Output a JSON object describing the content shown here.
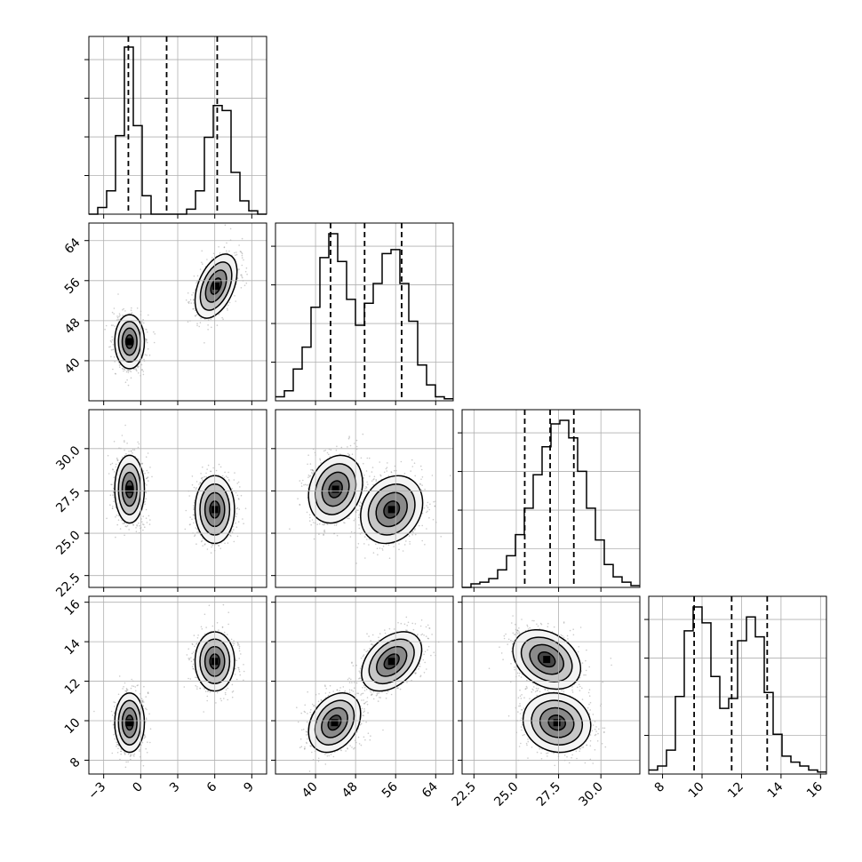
{
  "chart_data": {
    "type": "corner",
    "title": "",
    "grid": true,
    "parameters": [
      {
        "name": "",
        "range": [
          -4.2,
          10.2
        ],
        "ticks": [
          -3,
          0,
          3,
          6,
          9
        ],
        "tick_labels": [
          "−3",
          "0",
          "3",
          "6",
          "9"
        ],
        "quantiles": [
          -1.0,
          2.1,
          6.2
        ],
        "histogram": {
          "bin_start": -4.2,
          "bin_width": 0.72,
          "counts": [
            0.0,
            0.04,
            0.14,
            0.47,
            1.0,
            0.53,
            0.11,
            0.0,
            0.0,
            0.0,
            0.0,
            0.03,
            0.14,
            0.46,
            0.65,
            0.62,
            0.25,
            0.08,
            0.02,
            0.0
          ]
        }
      },
      {
        "name": "",
        "range": [
          32,
          67.5
        ],
        "ticks": [
          40,
          48,
          56,
          64
        ],
        "tick_labels": [
          "40",
          "48",
          "56",
          "64"
        ],
        "quantiles": [
          43.0,
          49.8,
          57.2
        ],
        "histogram": {
          "bin_start": 32,
          "bin_width": 1.775,
          "counts": [
            0.02,
            0.05,
            0.16,
            0.27,
            0.47,
            0.72,
            0.84,
            0.7,
            0.51,
            0.38,
            0.49,
            0.59,
            0.74,
            0.76,
            0.59,
            0.4,
            0.18,
            0.08,
            0.02,
            0.01
          ]
        }
      },
      {
        "name": "",
        "range": [
          21.8,
          32.3
        ],
        "ticks": [
          22.5,
          25.0,
          27.5,
          30.0
        ],
        "tick_labels": [
          "22.5",
          "25.0",
          "27.5",
          "30.0"
        ],
        "quantiles": [
          25.5,
          27.0,
          28.4
        ],
        "histogram": {
          "bin_start": 21.8,
          "bin_width": 0.525,
          "counts": [
            0.0,
            0.02,
            0.03,
            0.05,
            0.1,
            0.18,
            0.3,
            0.45,
            0.64,
            0.8,
            0.93,
            0.95,
            0.85,
            0.66,
            0.45,
            0.27,
            0.13,
            0.06,
            0.03,
            0.01
          ]
        }
      },
      {
        "name": "",
        "range": [
          7.3,
          16.3
        ],
        "ticks": [
          8,
          10,
          12,
          14,
          16
        ],
        "tick_labels": [
          "8",
          "10",
          "12",
          "14",
          "16"
        ],
        "quantiles": [
          9.6,
          11.5,
          13.3
        ],
        "histogram": {
          "bin_start": 7.3,
          "bin_width": 0.45,
          "counts": [
            0.02,
            0.04,
            0.12,
            0.39,
            0.72,
            0.84,
            0.76,
            0.49,
            0.33,
            0.38,
            0.67,
            0.79,
            0.69,
            0.41,
            0.2,
            0.09,
            0.06,
            0.04,
            0.02,
            0.01
          ]
        }
      }
    ],
    "pairs": [
      {
        "row": 1,
        "col": 0,
        "modes": [
          {
            "mx": -0.9,
            "my": 43.8,
            "sx": 0.6,
            "sy": 2.7,
            "rho": 0.0
          },
          {
            "mx": 6.1,
            "my": 54.9,
            "sx": 0.85,
            "sy": 3.2,
            "rho": 0.45
          }
        ]
      },
      {
        "row": 2,
        "col": 0,
        "modes": [
          {
            "mx": -0.9,
            "my": 27.6,
            "sx": 0.6,
            "sy": 1.0,
            "rho": 0.0
          },
          {
            "mx": 6.0,
            "my": 26.4,
            "sx": 0.8,
            "sy": 1.0,
            "rho": 0.0
          }
        ]
      },
      {
        "row": 2,
        "col": 1,
        "modes": [
          {
            "mx": 44.0,
            "my": 27.6,
            "sx": 2.7,
            "sy": 1.0,
            "rho": 0.2
          },
          {
            "mx": 55.2,
            "my": 26.4,
            "sx": 3.1,
            "sy": 1.0,
            "rho": 0.2
          }
        ]
      },
      {
        "row": 3,
        "col": 0,
        "modes": [
          {
            "mx": -0.9,
            "my": 9.9,
            "sx": 0.6,
            "sy": 0.75,
            "rho": 0.0
          },
          {
            "mx": 6.0,
            "my": 13.0,
            "sx": 0.8,
            "sy": 0.75,
            "rho": 0.0
          }
        ]
      },
      {
        "row": 3,
        "col": 1,
        "modes": [
          {
            "mx": 43.8,
            "my": 9.9,
            "sx": 2.6,
            "sy": 0.75,
            "rho": 0.3
          },
          {
            "mx": 55.2,
            "my": 13.0,
            "sx": 3.0,
            "sy": 0.75,
            "rho": 0.4
          }
        ]
      },
      {
        "row": 3,
        "col": 2,
        "modes": [
          {
            "mx": 26.8,
            "my": 13.1,
            "sx": 1.0,
            "sy": 0.75,
            "rho": -0.3
          },
          {
            "mx": 27.4,
            "my": 9.9,
            "sx": 1.0,
            "sy": 0.75,
            "rho": -0.1
          }
        ]
      }
    ],
    "colors": {
      "lines": "#000000",
      "grid": "#b0b0b0",
      "points": "#8c8c8c",
      "density": [
        "#f4f4f4",
        "#bdbdbd",
        "#7f7f7f",
        "#3a3a3a",
        "#000000"
      ]
    }
  }
}
